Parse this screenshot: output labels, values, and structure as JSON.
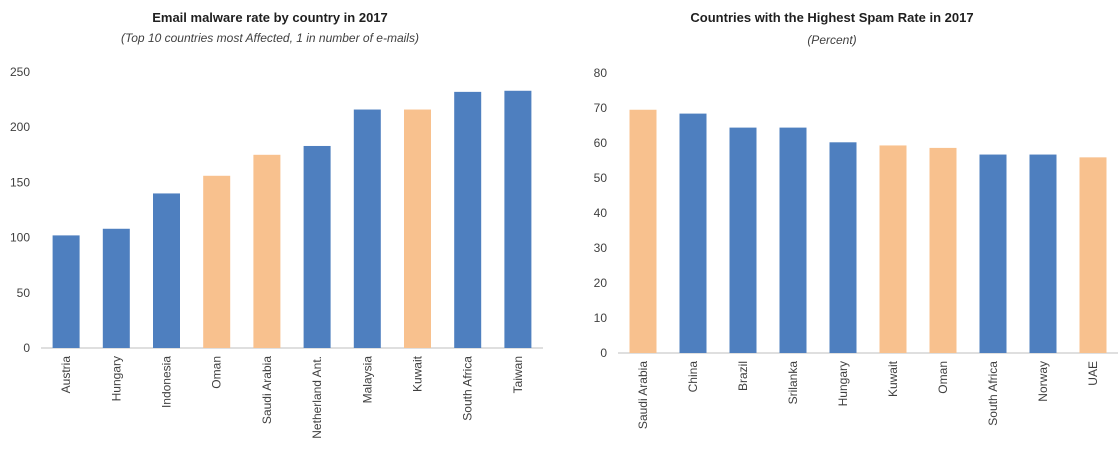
{
  "chart_data": [
    {
      "type": "bar",
      "title": "Email  malware  rate by country in 2017",
      "subtitle": "(Top 10 countries most Affected, 1 in number of e-mails)",
      "categories": [
        "Austria",
        "Hungary",
        "Indonesia",
        "Oman",
        "Saudi Arabia",
        "Netherland Ant.",
        "Malaysia",
        "Kuwait",
        "South Africa",
        "Taiwan"
      ],
      "values": [
        102,
        108,
        140,
        156,
        175,
        183,
        216,
        216,
        232,
        233
      ],
      "highlight": [
        false,
        false,
        false,
        true,
        true,
        false,
        false,
        true,
        false,
        false
      ],
      "yticks": [
        "0",
        "50",
        "100",
        "150",
        "200",
        "250"
      ],
      "ylim": [
        0,
        250
      ],
      "xlabel": "",
      "ylabel": "",
      "grid": false,
      "colors": {
        "default": "#4e7fbf",
        "highlight": "#f8c18e"
      }
    },
    {
      "type": "bar",
      "title": "Countries with the Highest Spam Rate in 2017",
      "subtitle": "(Percent)",
      "categories": [
        "Saudi Arabia",
        "China",
        "Brazil",
        "Srilanka",
        "Hungary",
        "Kuwait",
        "Oman",
        "South Africa",
        "Norway",
        "UAE"
      ],
      "values": [
        69.5,
        68.4,
        64.4,
        64.4,
        60.2,
        59.3,
        58.6,
        56.7,
        56.7,
        55.9
      ],
      "highlight": [
        true,
        false,
        false,
        false,
        false,
        true,
        true,
        false,
        false,
        true
      ],
      "yticks": [
        "0",
        "10",
        "20",
        "30",
        "40",
        "50",
        "60",
        "70",
        "80"
      ],
      "ylim": [
        0,
        80
      ],
      "xlabel": "",
      "ylabel": "",
      "grid": false,
      "colors": {
        "default": "#4e7fbf",
        "highlight": "#f8c18e"
      }
    }
  ]
}
